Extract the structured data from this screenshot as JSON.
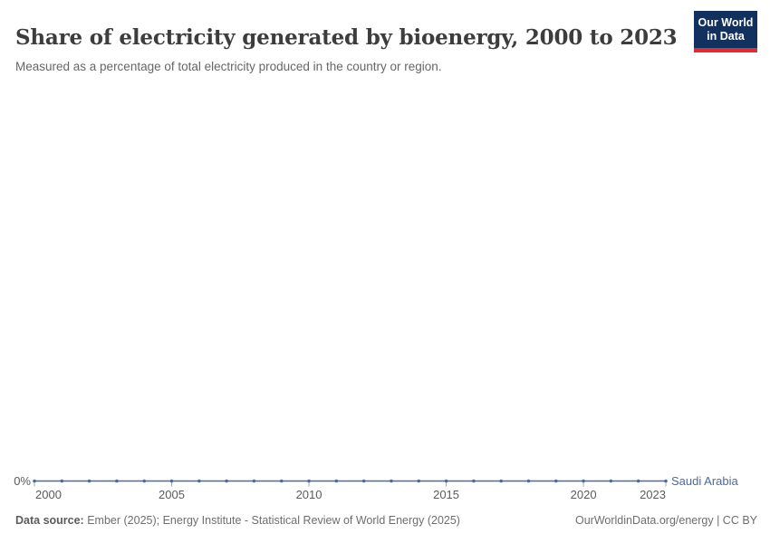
{
  "header": {
    "title": "Share of electricity generated by bioenergy, 2000 to 2023",
    "subtitle": "Measured as a percentage of total electricity produced in the country or region.",
    "logo": {
      "line1": "Our World",
      "line2": "in Data",
      "bg_color": "#12315e",
      "accent_color": "#d13239"
    }
  },
  "chart_data": {
    "type": "line",
    "title": "Share of electricity generated by bioenergy, 2000 to 2023",
    "subtitle": "Measured as a percentage of total electricity produced in the country or region.",
    "x": [
      2000,
      2001,
      2002,
      2003,
      2004,
      2005,
      2006,
      2007,
      2008,
      2009,
      2010,
      2011,
      2012,
      2013,
      2014,
      2015,
      2016,
      2017,
      2018,
      2019,
      2020,
      2021,
      2022,
      2023
    ],
    "series": [
      {
        "name": "Saudi Arabia",
        "color": "#4c6a9c",
        "values": [
          0,
          0,
          0,
          0,
          0,
          0,
          0,
          0,
          0,
          0,
          0,
          0,
          0,
          0,
          0,
          0,
          0,
          0,
          0,
          0,
          0,
          0,
          0,
          0
        ]
      }
    ],
    "xlim": [
      2000,
      2023
    ],
    "ylim": [
      0,
      0
    ],
    "x_ticks": [
      2000,
      2005,
      2010,
      2015,
      2020,
      2023
    ],
    "y_ticks": [
      {
        "value": 0,
        "label": "0%"
      }
    ],
    "grid": false,
    "legend_position": "end-of-line",
    "marker": "circle",
    "axis_text_color": "#5b5b5b",
    "tick_color": "#a7a7a7"
  },
  "footer": {
    "datasource_label": "Data source:",
    "datasource_text": " Ember (2025); Energy Institute - Statistical Review of World Energy (2025)",
    "credit": "OurWorldinData.org/energy | CC BY"
  }
}
